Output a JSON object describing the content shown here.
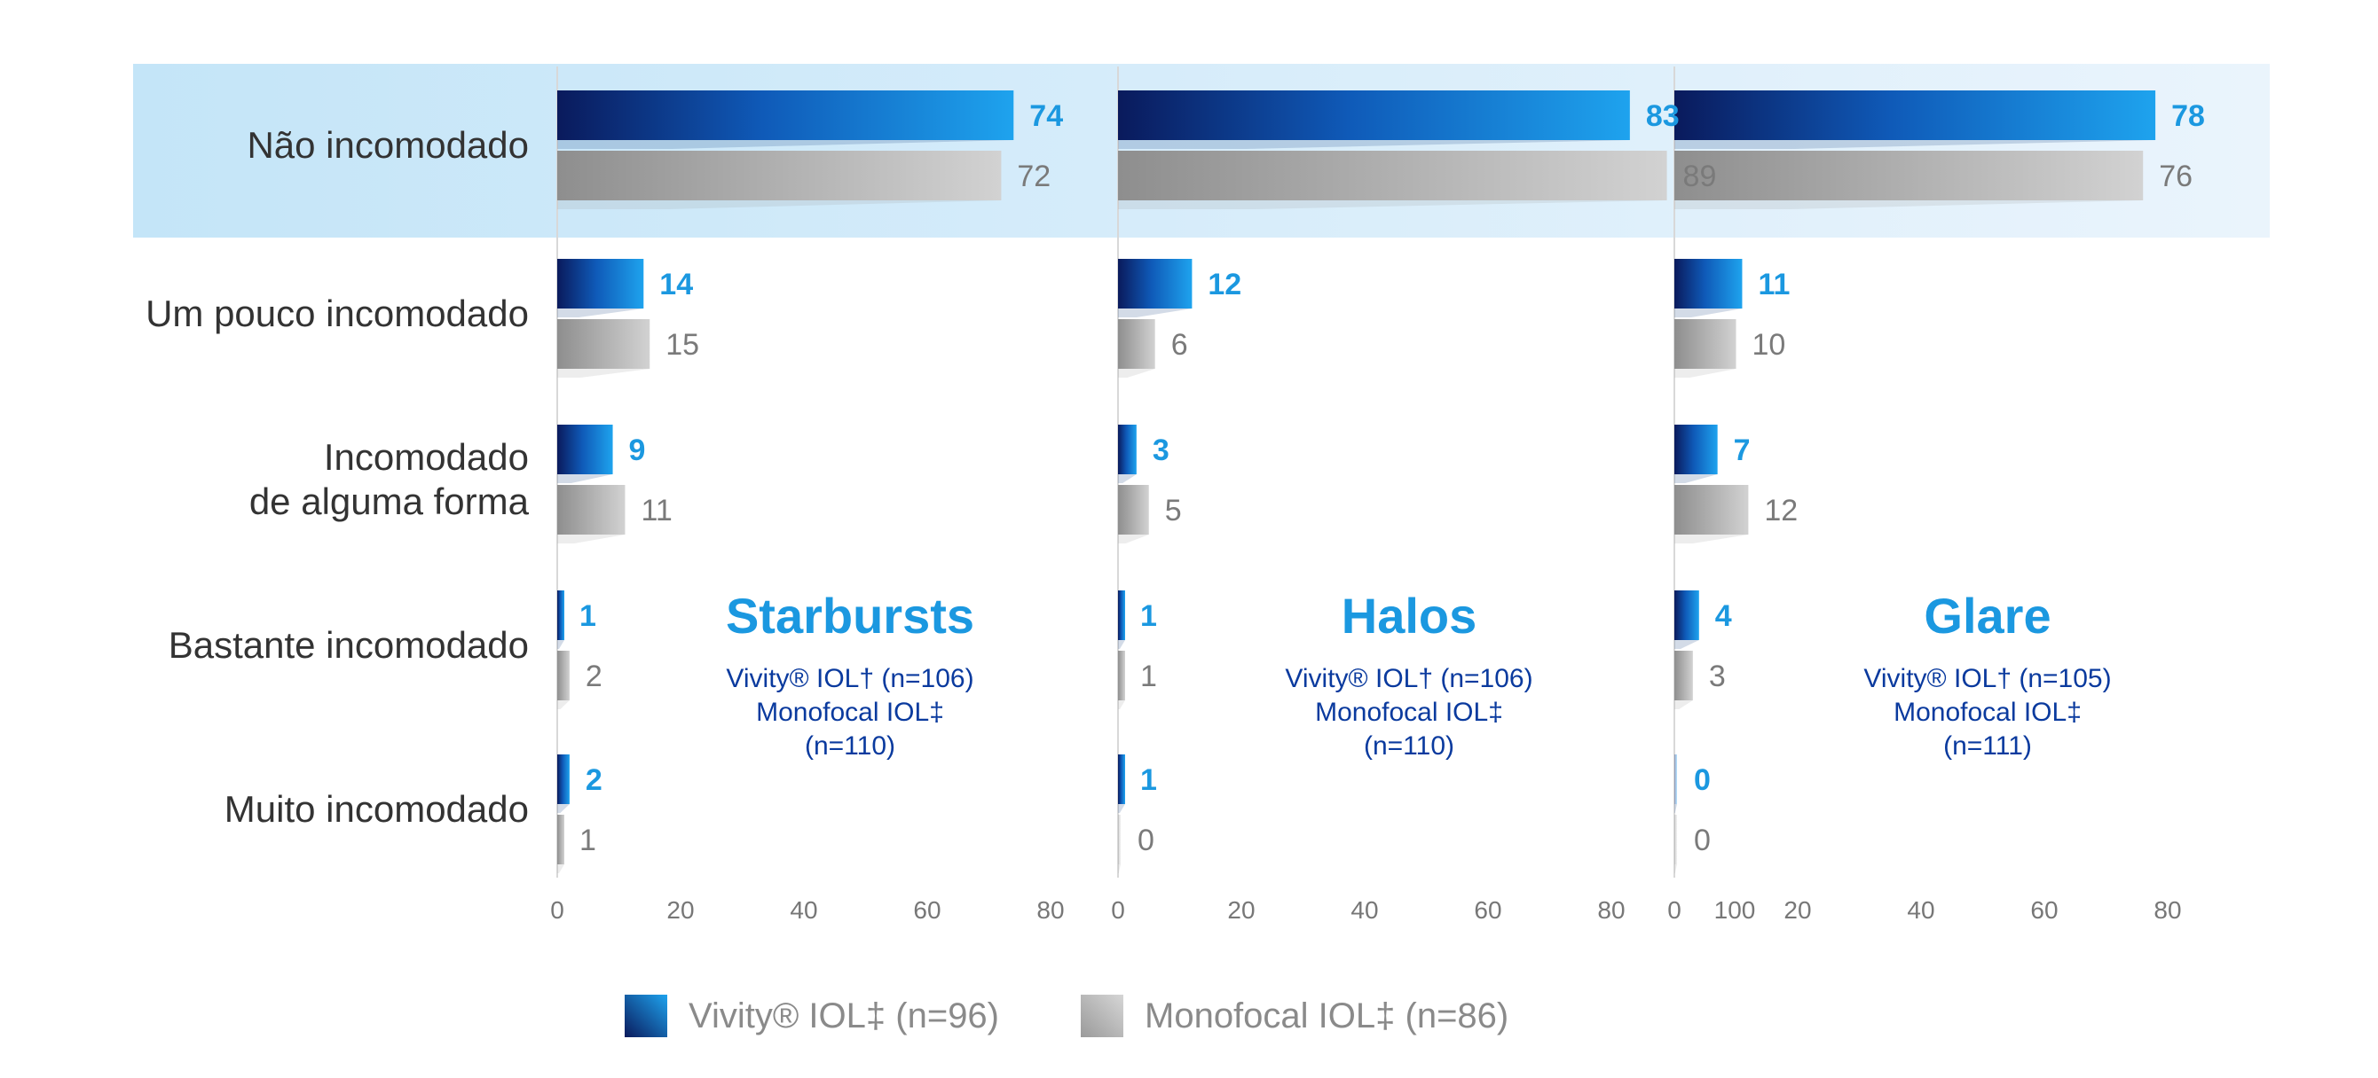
{
  "chart_data": {
    "type": "bar",
    "orientation": "horizontal",
    "categories": [
      "Não incomodado",
      "Um pouco incomodado",
      "Incomodado\nde alguma forma",
      "Bastante incomodado",
      "Muito incomodado"
    ],
    "highlighted_category": "Não incomodado",
    "legend": {
      "placement": "bottom",
      "items": [
        {
          "label": "Vivity® IOL‡ (n=96)",
          "color": "#1b98e0"
        },
        {
          "label": "Monofocal IOL‡ (n=86)",
          "color": "#b0b0b0"
        }
      ]
    },
    "colors": {
      "vivity": "#1b98e0",
      "vivity_dark": "#0a1a5c",
      "monofocal": "#b0b0b0",
      "highlight": "#c8e6f8",
      "sub_text": "#0a3a9e"
    },
    "panels": [
      {
        "title": "Starbursts",
        "subtitle": [
          "Vivity® IOL†  (n=106)",
          "Monofocal IOL‡",
          "(n=110)"
        ],
        "ticks": [
          0,
          20,
          40,
          60,
          80
        ],
        "xlim": [
          0,
          80
        ],
        "series": [
          {
            "values": [
              74,
              14,
              9,
              1,
              2
            ]
          },
          {
            "values": [
              72,
              15,
              11,
              2,
              1
            ]
          }
        ]
      },
      {
        "title": "Halos",
        "subtitle": [
          "Vivity® IOL†  (n=106)",
          "Monofocal IOL‡",
          "(n=110)"
        ],
        "ticks": [
          0,
          20,
          40,
          60,
          80,
          100
        ],
        "xlim": [
          0,
          100
        ],
        "series": [
          {
            "values": [
              83,
              12,
              3,
              1,
              1
            ]
          },
          {
            "values": [
              89,
              6,
              5,
              1,
              0
            ]
          }
        ]
      },
      {
        "title": "Glare",
        "subtitle": [
          "Vivity® IOL†  (n=105)",
          "Monofocal IOL‡",
          "(n=111)"
        ],
        "ticks": [
          0,
          20,
          40,
          60,
          80
        ],
        "xlim": [
          0,
          80
        ],
        "series": [
          {
            "values": [
              78,
              11,
              7,
              4,
              0
            ]
          },
          {
            "values": [
              76,
              10,
              12,
              3,
              0
            ]
          }
        ]
      }
    ]
  }
}
